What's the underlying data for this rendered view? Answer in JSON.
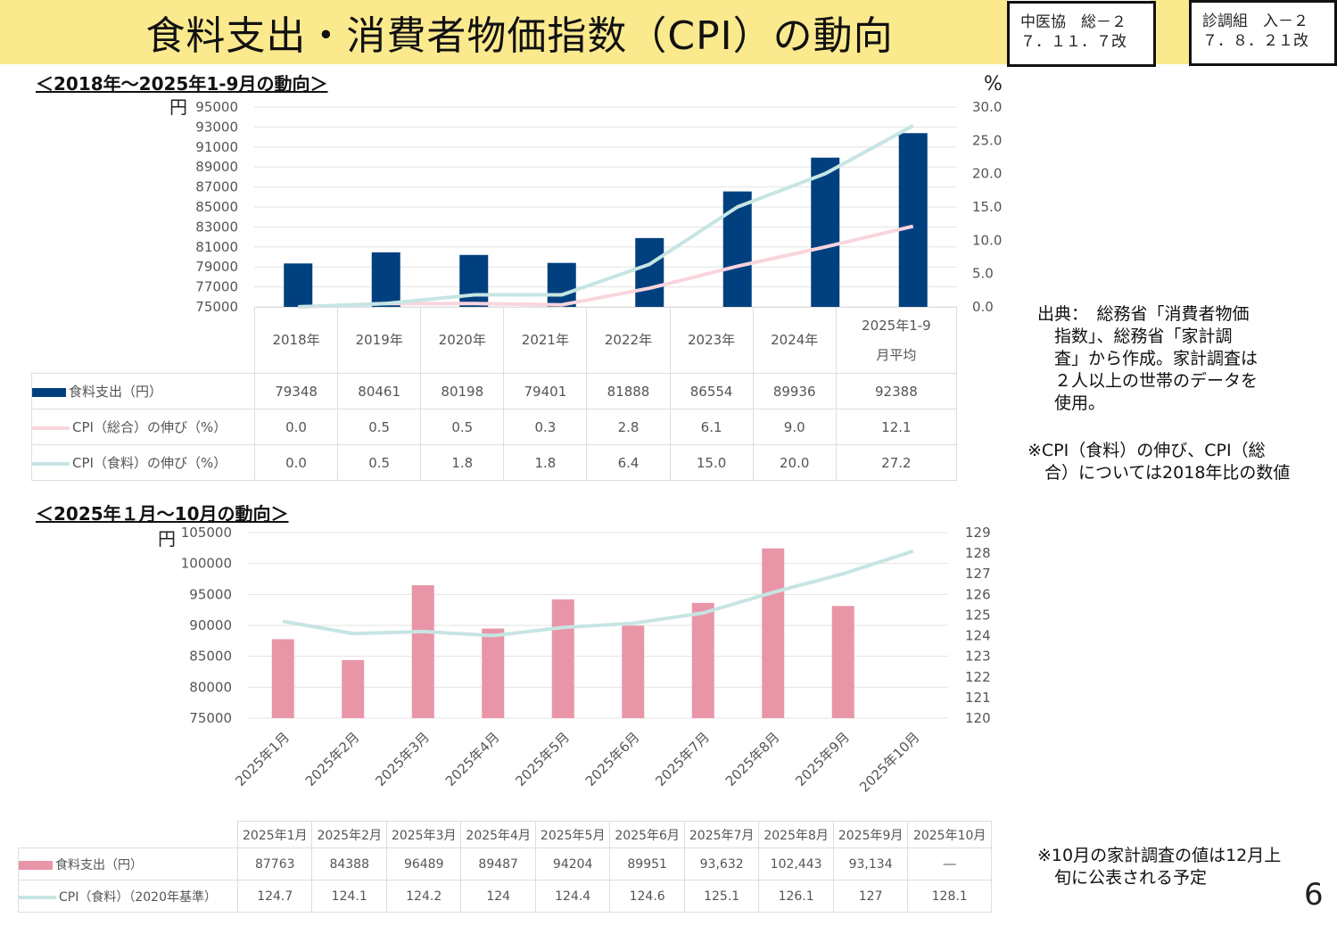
{
  "title": "食料支出・消費者物価指数（CPI）の動向",
  "stamps": [
    {
      "line1": "中医協　総－２",
      "line2": "７．１１．７改"
    },
    {
      "line1": "診調組　入－２",
      "line2": "７．８．２１改"
    }
  ],
  "colors": {
    "food_bar": "#00407f",
    "cpi_total": "#f9d5dc",
    "cpi_food": "#c6e5e3",
    "monthly_bar": "#e995a8",
    "banner": "#fbe98e"
  },
  "notes": {
    "source": "出典：　総務省「消費者物価\n　指数」、総務省「家計調\n　査」から作成。家計調査は\n　２人以上の世帯のデータを\n　使用。",
    "cpi_note": "※CPI（食料）の伸び、CPI（総\n　合）については2018年比の数値",
    "oct_note": "※10月の家計調査の値は12月上\n　旬に公表される予定"
  },
  "page_number": "6",
  "chart_data": [
    {
      "type": "bar",
      "title": "＜2018年～2025年1-9月の動向＞",
      "left_unit": "円",
      "right_unit": "%",
      "categories": [
        "2018年",
        "2019年",
        "2020年",
        "2021年",
        "2022年",
        "2023年",
        "2024年",
        "2025年1-9\n月平均"
      ],
      "ylim": [
        75000,
        95000
      ],
      "yticks": [
        "95000",
        "93000",
        "91000",
        "89000",
        "87000",
        "85000",
        "83000",
        "81000",
        "79000",
        "77000",
        "75000"
      ],
      "y2lim": [
        0,
        30
      ],
      "y2ticks": [
        "30.0",
        "25.0",
        "20.0",
        "15.0",
        "10.0",
        "5.0",
        "0.0"
      ],
      "series": [
        {
          "name": "食料支出（円）",
          "type": "bar",
          "values": [
            79348,
            80461,
            80198,
            79401,
            81888,
            86554,
            89936,
            92388
          ],
          "labels": [
            "79348",
            "80461",
            "80198",
            "79401",
            "81888",
            "86554",
            "89936",
            "92388"
          ]
        },
        {
          "name": "CPI（総合）の伸び（%）",
          "type": "line",
          "axis": "right",
          "values": [
            0.0,
            0.5,
            0.5,
            0.3,
            2.8,
            6.1,
            9.0,
            12.1
          ],
          "labels": [
            "0.0",
            "0.5",
            "0.5",
            "0.3",
            "2.8",
            "6.1",
            "9.0",
            "12.1"
          ]
        },
        {
          "name": "CPI（食料）の伸び（%）",
          "type": "line",
          "axis": "right",
          "values": [
            0.0,
            0.5,
            1.8,
            1.8,
            6.4,
            15.0,
            20.0,
            27.2
          ],
          "labels": [
            "0.0",
            "0.5",
            "1.8",
            "1.8",
            "6.4",
            "15.0",
            "20.0",
            "27.2"
          ]
        }
      ]
    },
    {
      "type": "bar",
      "title": "＜2025年１月～10月の動向＞",
      "left_unit": "円",
      "categories": [
        "2025年1月",
        "2025年2月",
        "2025年3月",
        "2025年4月",
        "2025年5月",
        "2025年6月",
        "2025年7月",
        "2025年8月",
        "2025年9月",
        "2025年10月"
      ],
      "ylim": [
        75000,
        105000
      ],
      "yticks": [
        "105000",
        "100000",
        "95000",
        "90000",
        "85000",
        "80000",
        "75000"
      ],
      "y2lim": [
        120,
        129
      ],
      "y2ticks": [
        "129",
        "128",
        "127",
        "126",
        "125",
        "124",
        "123",
        "122",
        "121",
        "120"
      ],
      "series": [
        {
          "name": "食料支出（円）",
          "type": "bar",
          "values": [
            87763,
            84388,
            96489,
            89487,
            94204,
            89951,
            93632,
            102443,
            93134,
            null
          ],
          "labels": [
            "87763",
            "84388",
            "96489",
            "89487",
            "94204",
            "89951",
            "93,632",
            "102,443",
            "93,134",
            "―"
          ]
        },
        {
          "name": "CPI（食料）（2020年基準）",
          "type": "line",
          "axis": "right",
          "values": [
            124.7,
            124.1,
            124.2,
            124,
            124.4,
            124.6,
            125.1,
            126.1,
            127,
            128.1
          ],
          "labels": [
            "124.7",
            "124.1",
            "124.2",
            "124",
            "124.4",
            "124.6",
            "125.1",
            "126.1",
            "127",
            "128.1"
          ]
        }
      ]
    }
  ]
}
